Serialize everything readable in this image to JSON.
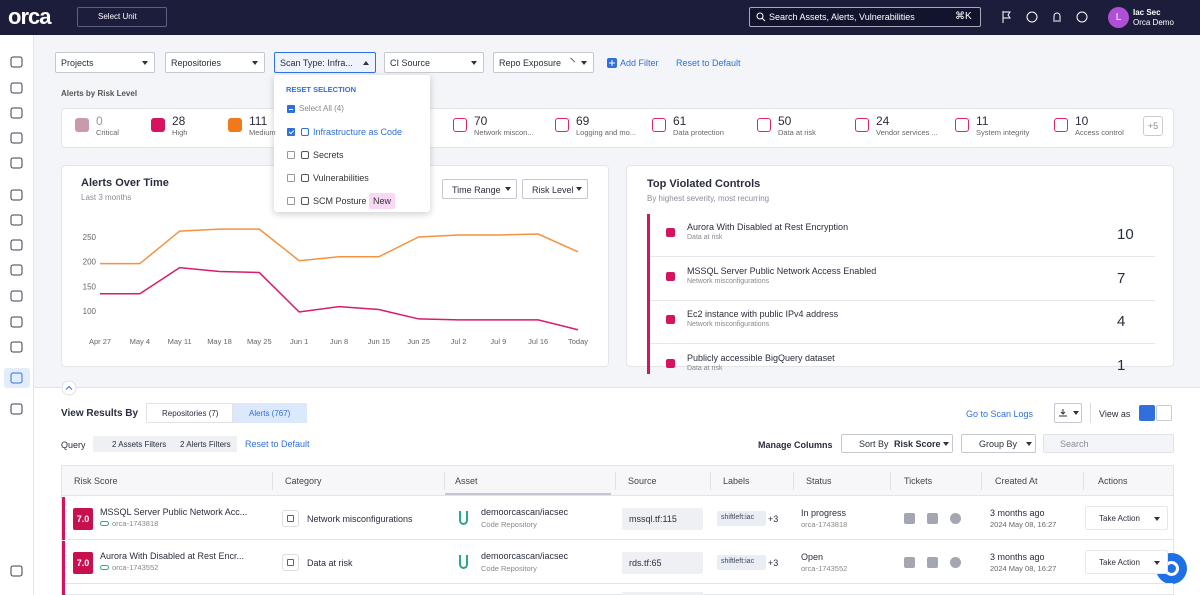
{
  "topbar": {
    "logo": "orca",
    "unit_selector": "Select Unit",
    "search_placeholder": "Search Assets, Alerts, Vulnerabilities",
    "search_shortcut": "⌘K",
    "user": {
      "avatar": "L",
      "name": "Iac Sec",
      "org": "Orca Demo"
    }
  },
  "filters": {
    "chips": [
      "Projects",
      "Repositories",
      "Scan Type: Infra...",
      "CI Source",
      "Repo Exposure"
    ],
    "add_filter": "Add Filter",
    "reset": "Reset to Default"
  },
  "scan_type_dropdown": {
    "reset": "RESET SELECTION",
    "options": [
      {
        "label": "Select All (4)"
      },
      {
        "label": "Infrastructure as Code",
        "checked": true
      },
      {
        "label": "Secrets"
      },
      {
        "label": "Vulnerabilities"
      },
      {
        "label": "SCM Posture",
        "badge": "New"
      }
    ]
  },
  "risk_level": {
    "title": "Alerts by Risk Level",
    "items": [
      {
        "count": 0,
        "label": "Critical"
      },
      {
        "count": 28,
        "label": "High"
      },
      {
        "count": 111,
        "label": "Medium"
      },
      {
        "count": 70,
        "label": "Network miscon..."
      },
      {
        "count": 69,
        "label": "Logging and mo..."
      },
      {
        "count": 61,
        "label": "Data protection"
      },
      {
        "count": 50,
        "label": "Data at risk"
      },
      {
        "count": 24,
        "label": "Vendor services ..."
      },
      {
        "count": 11,
        "label": "System integrity"
      },
      {
        "count": 10,
        "label": "Access control"
      }
    ],
    "more": "+5"
  },
  "chart_data": {
    "type": "line",
    "title": "Alerts Over Time",
    "subtitle": "Last 3 months",
    "controls": [
      "Time Range",
      "Risk Level"
    ],
    "categories": [
      "Apr 27",
      "May 4",
      "May 11",
      "May 18",
      "May 25",
      "Jun 1",
      "Jun 8",
      "Jun 15",
      "Jun 25",
      "Jul 2",
      "Jul 9",
      "Jul 16",
      "Today"
    ],
    "series": [
      {
        "color": "#f5923e",
        "values": [
          196,
          196,
          262,
          266,
          266,
          202,
          210,
          210,
          250,
          254,
          254,
          256,
          220
        ]
      },
      {
        "color": "#d81b6a",
        "values": [
          135,
          135,
          188,
          180,
          178,
          98,
          109,
          103,
          84,
          82,
          82,
          82,
          62
        ]
      }
    ],
    "ylim": [
      50,
      280
    ],
    "yticks": [
      100,
      150,
      200,
      250
    ],
    "grid": false
  },
  "top_violated": {
    "title": "Top Violated Controls",
    "subtitle": "By highest severity, most recurring",
    "items": [
      {
        "name": "Aurora With Disabled at Rest Encryption",
        "category": "Data at risk",
        "count": 10
      },
      {
        "name": "MSSQL Server Public Network Access Enabled",
        "category": "Network misconfigurations",
        "count": 7
      },
      {
        "name": "Ec2 instance with public IPv4 address",
        "category": "Network misconfigurations",
        "count": 4
      },
      {
        "name": "Publicly accessible BigQuery dataset",
        "category": "Data at risk",
        "count": 1
      }
    ]
  },
  "results": {
    "view_by": "View Results By",
    "tabs": [
      "Repositories (7)",
      "Alerts (767)"
    ],
    "scan_logs": "Go to Scan Logs",
    "view_as": "View as",
    "query": "Query",
    "query_filters": [
      "2 Assets Filters",
      "2 Alerts Filters"
    ],
    "reset": "Reset to Default",
    "manage_columns": "Manage Columns",
    "sort_by": "Sort By",
    "sort_field": "Risk Score",
    "group_by": "Group By",
    "search": "Search"
  },
  "table": {
    "columns": [
      "Risk Score",
      "Category",
      "Asset",
      "Source",
      "Labels",
      "Status",
      "Tickets",
      "Created At",
      "Actions"
    ],
    "rows": [
      {
        "score": "7.0",
        "title": "MSSQL Server Public Network Acc...",
        "id": "orca-1743818",
        "category": "Network misconfigurations",
        "asset": "demoorcascan/iacsec",
        "asset_type": "Code Repository",
        "source": "mssql.tf:115",
        "label": "shiftleft:iac",
        "label_more": "+3",
        "status": "In progress",
        "status_id": "orca-1743818",
        "created": "3 months ago",
        "created_at": "2024 May 08, 16:27",
        "action": "Take Action"
      },
      {
        "score": "7.0",
        "title": "Aurora With Disabled at Rest Encr...",
        "id": "orca-1743552",
        "category": "Data at risk",
        "asset": "demoorcascan/iacsec",
        "asset_type": "Code Repository",
        "source": "rds.tf:65",
        "label": "shiftleft:iac",
        "label_more": "+3",
        "status": "Open",
        "status_id": "orca-1743552",
        "created": "3 months ago",
        "created_at": "2024 May 08, 16:27",
        "action": "Take Action"
      }
    ]
  }
}
